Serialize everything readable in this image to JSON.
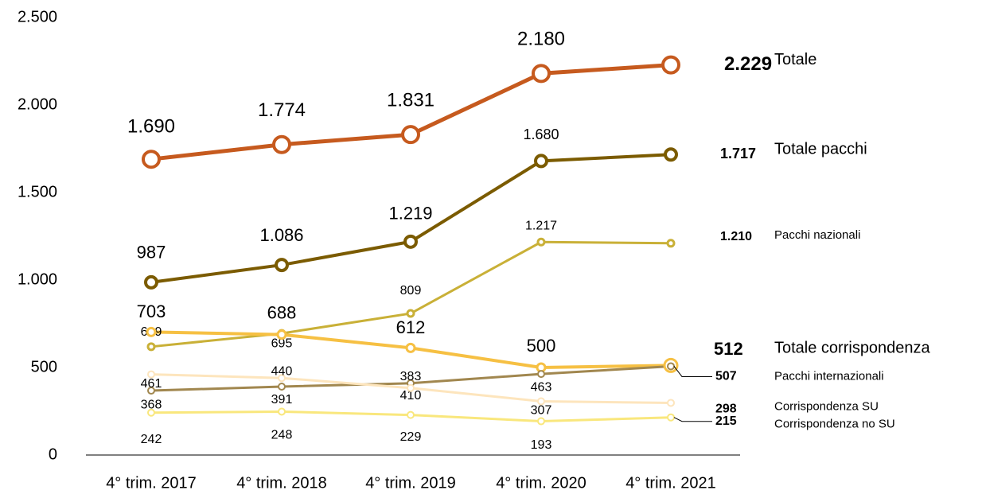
{
  "chart_data": {
    "type": "line",
    "categories": [
      "4° trim. 2017",
      "4° trim. 2018",
      "4° trim. 2019",
      "4° trim. 2020",
      "4° trim. 2021"
    ],
    "ylim": [
      0,
      2500
    ],
    "yticks": [
      0,
      500,
      {
        "value": 1000,
        "label": "1.000"
      },
      {
        "value": 1500,
        "label": "1.500"
      },
      {
        "value": 2000,
        "label": "2.000"
      },
      {
        "value": 2500,
        "label": "2.500"
      }
    ],
    "grid": false,
    "series": [
      {
        "name": "Totale",
        "color": "#c65a1e",
        "values": [
          1690,
          1774,
          1831,
          2180,
          2229
        ],
        "value_labels": [
          "1.690",
          "1.774",
          "1.831",
          "2.180",
          "2.229"
        ]
      },
      {
        "name": "Totale pacchi",
        "color": "#7b5b00",
        "values": [
          987,
          1086,
          1219,
          1680,
          1717
        ],
        "value_labels": [
          "987",
          "1.086",
          "1.219",
          "1.680",
          "1.717"
        ]
      },
      {
        "name": "Pacchi nazionali",
        "color": "#c9b037",
        "values": [
          619,
          695,
          809,
          1217,
          1210
        ],
        "value_labels": [
          "619",
          "695",
          "809",
          "1.217",
          "1.210"
        ]
      },
      {
        "name": "Totale corrispondenza",
        "color": "#f6c043",
        "values": [
          703,
          688,
          612,
          500,
          512
        ]
      },
      {
        "name": "Pacchi internazionali",
        "color": "#a1874f",
        "values": [
          368,
          391,
          410,
          463,
          507
        ]
      },
      {
        "name": "Corrispondenza SU",
        "color": "#fde5bd",
        "values": [
          461,
          440,
          383,
          307,
          298
        ]
      },
      {
        "name": "Corrispondenza no SU",
        "color": "#f9e77d",
        "values": [
          242,
          248,
          229,
          193,
          215
        ]
      }
    ]
  }
}
